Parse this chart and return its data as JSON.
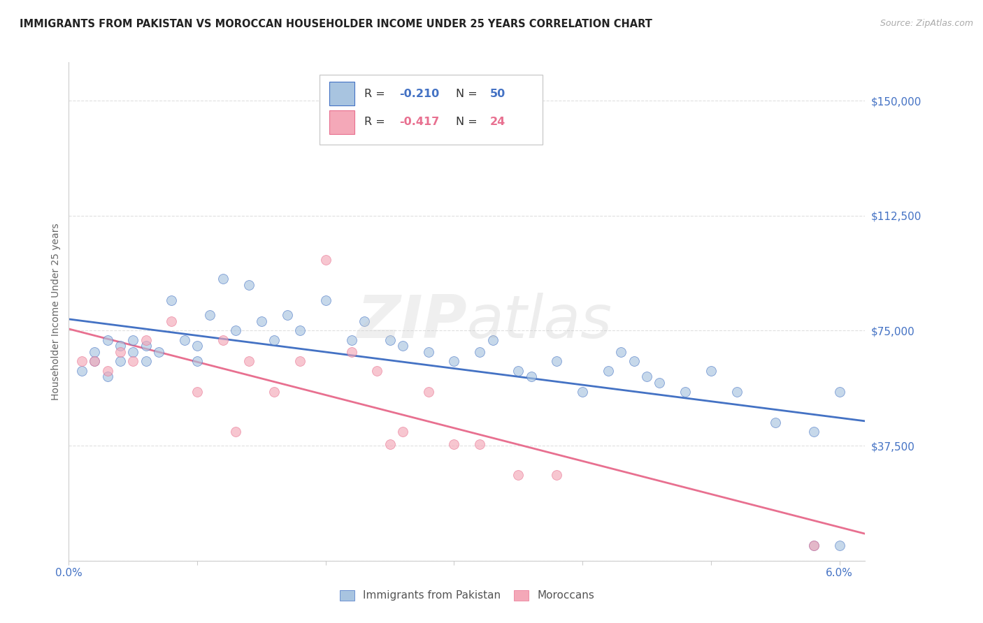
{
  "title": "IMMIGRANTS FROM PAKISTAN VS MOROCCAN HOUSEHOLDER INCOME UNDER 25 YEARS CORRELATION CHART",
  "source": "Source: ZipAtlas.com",
  "ylabel": "Householder Income Under 25 years",
  "legend_entries": [
    {
      "label": "Immigrants from Pakistan",
      "R": "-0.210",
      "N": "50",
      "color": "#a8c4e0",
      "edge": "#4472c4"
    },
    {
      "label": "Moroccans",
      "R": "-0.417",
      "N": "24",
      "color": "#f4a8b8",
      "edge": "#e87090"
    }
  ],
  "pakistan_x": [
    0.001,
    0.002,
    0.002,
    0.003,
    0.003,
    0.004,
    0.004,
    0.005,
    0.005,
    0.006,
    0.006,
    0.007,
    0.008,
    0.009,
    0.01,
    0.01,
    0.011,
    0.012,
    0.013,
    0.014,
    0.015,
    0.016,
    0.017,
    0.018,
    0.02,
    0.022,
    0.023,
    0.025,
    0.026,
    0.028,
    0.03,
    0.032,
    0.033,
    0.035,
    0.036,
    0.038,
    0.04,
    0.042,
    0.043,
    0.044,
    0.045,
    0.046,
    0.048,
    0.05,
    0.052,
    0.055,
    0.058,
    0.06,
    0.058,
    0.06
  ],
  "pakistan_y": [
    62000,
    65000,
    68000,
    60000,
    72000,
    65000,
    70000,
    68000,
    72000,
    65000,
    70000,
    68000,
    85000,
    72000,
    70000,
    65000,
    80000,
    92000,
    75000,
    90000,
    78000,
    72000,
    80000,
    75000,
    85000,
    72000,
    78000,
    72000,
    70000,
    68000,
    65000,
    68000,
    72000,
    62000,
    60000,
    65000,
    55000,
    62000,
    68000,
    65000,
    60000,
    58000,
    55000,
    62000,
    55000,
    45000,
    42000,
    55000,
    5000,
    5000
  ],
  "morocco_x": [
    0.001,
    0.002,
    0.003,
    0.004,
    0.005,
    0.006,
    0.008,
    0.01,
    0.012,
    0.013,
    0.014,
    0.016,
    0.018,
    0.02,
    0.022,
    0.024,
    0.025,
    0.026,
    0.028,
    0.03,
    0.032,
    0.035,
    0.038,
    0.058
  ],
  "morocco_y": [
    65000,
    65000,
    62000,
    68000,
    65000,
    72000,
    78000,
    55000,
    72000,
    42000,
    65000,
    55000,
    65000,
    98000,
    68000,
    62000,
    38000,
    42000,
    55000,
    38000,
    38000,
    28000,
    28000,
    5000
  ],
  "pakistan_color": "#a8c4e0",
  "morocco_color": "#f4a8b8",
  "pakistan_line_color": "#4472c4",
  "morocco_line_color": "#e87090",
  "title_color": "#222222",
  "source_color": "#aaaaaa",
  "axis_label_color": "#4472c4",
  "tick_color": "#888888",
  "grid_color": "#e0e0e0",
  "bg_color": "#ffffff",
  "xlim": [
    0.0,
    0.062
  ],
  "ylim": [
    0,
    162500
  ],
  "yticks": [
    0,
    37500,
    75000,
    112500,
    150000
  ],
  "ytick_labels": [
    "",
    "$37,500",
    "$75,000",
    "$112,500",
    "$150,000"
  ],
  "marker_size": 100,
  "marker_alpha": 0.65,
  "line_width": 2.0
}
